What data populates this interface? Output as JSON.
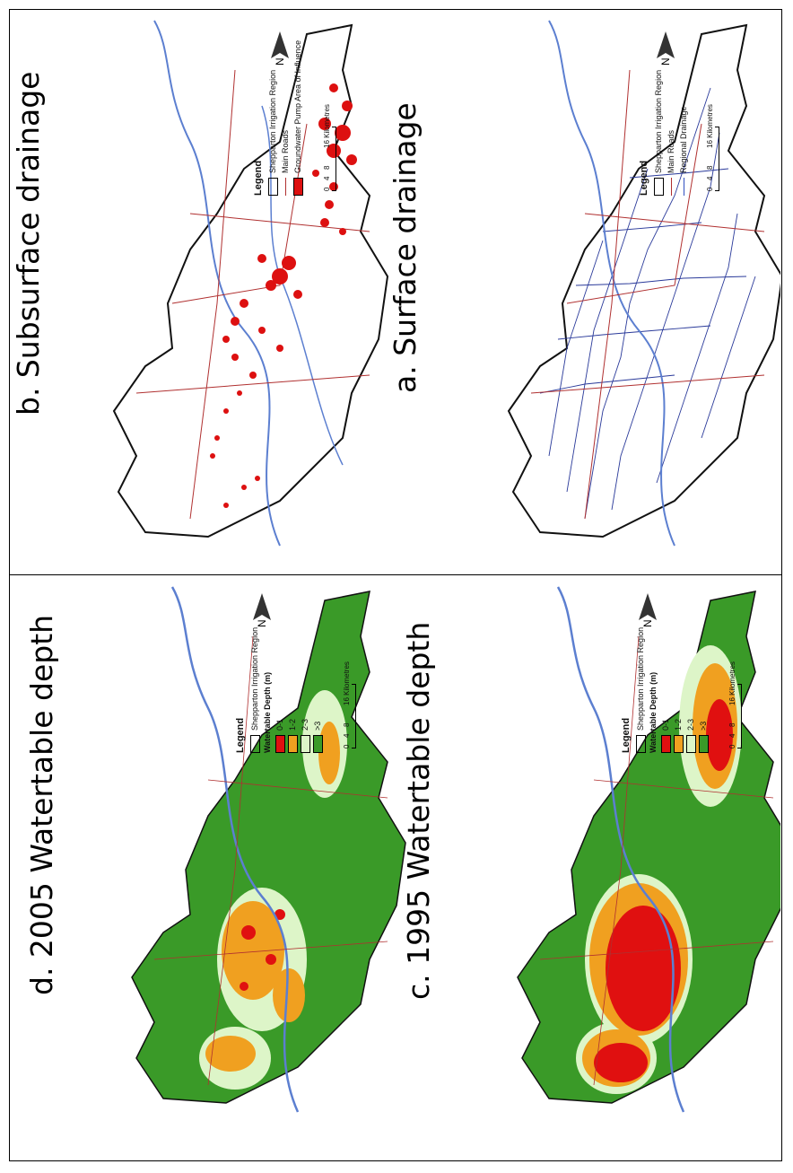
{
  "panels": {
    "a": {
      "title": "a. Surface drainage"
    },
    "b": {
      "title": "b. Subsurface drainage"
    },
    "c": {
      "title": "c. 1995 Watertable depth"
    },
    "d": {
      "title": "d. 2005 Watertable depth"
    }
  },
  "legend_common": {
    "heading": "Legend",
    "region": "Shepparton Irrigation Region",
    "roads": "Main Roads",
    "drainage": "Regional Drainage",
    "pumps": "Groundwater Pump Area of Influence",
    "depth_title": "Watertable Depth (m)",
    "depth_classes": [
      "0-1",
      "1-2",
      "2-3",
      ">3"
    ],
    "scale_ticks": [
      "0",
      "4",
      "8",
      "16 Kilometres"
    ],
    "north": "N"
  },
  "colors": {
    "depth_0_1": "#e01010",
    "depth_1_2": "#f0a020",
    "depth_2_3": "#ddf5c8",
    "depth_gt3": "#3a9a28",
    "roads": "#b03030",
    "drainage": "#2a3a9a",
    "river": "#5c7fd0",
    "pumps": "#dd1010"
  }
}
